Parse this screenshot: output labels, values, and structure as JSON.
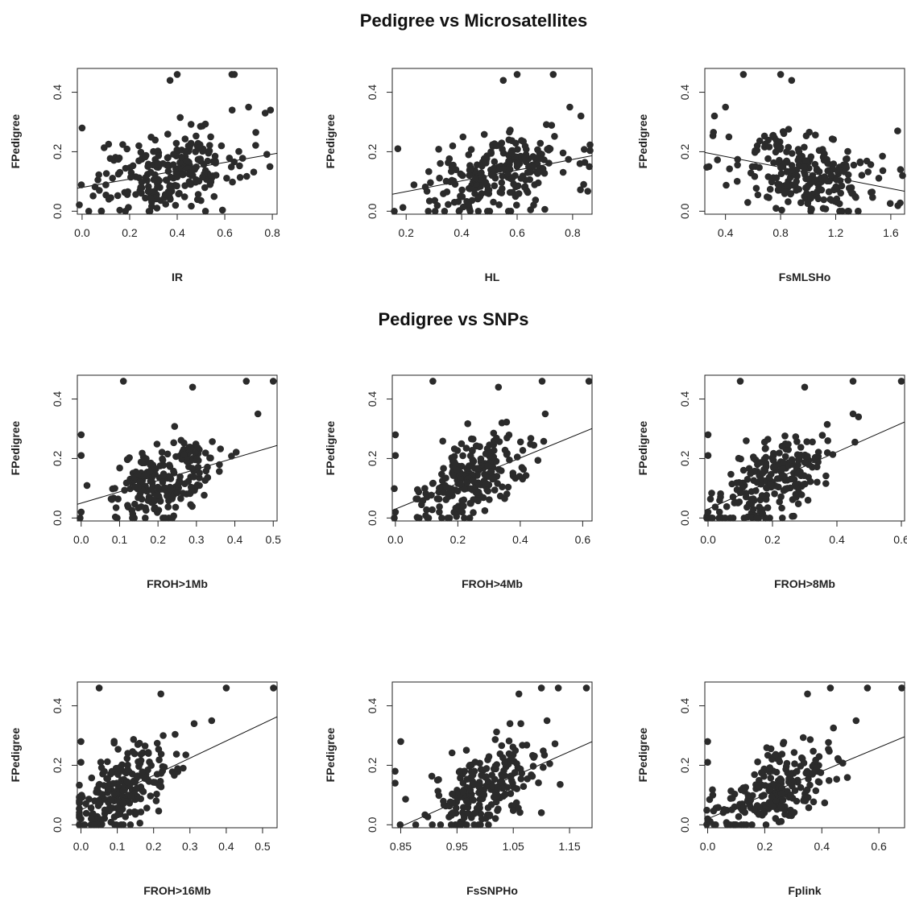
{
  "section_titles": {
    "microsatellites": "Pedigree vs Microsatellites",
    "snps": "Pedigree vs SNPs"
  },
  "colors": {
    "points": "#2b2b2b",
    "axis": "#222222",
    "line": "#111111"
  },
  "chart_data": [
    {
      "type": "scatter",
      "section": "microsatellites",
      "xlabel": "IR",
      "ylabel": "FPedigree",
      "xlim": [
        -0.02,
        0.82
      ],
      "ylim": [
        -0.01,
        0.48
      ],
      "xticks": [
        "0.0",
        "0.2",
        "0.4",
        "0.6",
        "0.8"
      ],
      "xtick_values": [
        0.0,
        0.2,
        0.4,
        0.6,
        0.8
      ],
      "yticks": [
        "0.0",
        "0.2",
        "0.4"
      ],
      "ytick_values": [
        0.0,
        0.2,
        0.4
      ],
      "regression": {
        "intercept": 0.08,
        "slope": 0.14
      },
      "highlight_points": [
        [
          0.37,
          0.44
        ],
        [
          0.4,
          0.46
        ],
        [
          0.63,
          0.46
        ],
        [
          0.64,
          0.46
        ],
        [
          0.0,
          0.28
        ],
        [
          0.7,
          0.35
        ],
        [
          0.77,
          0.33
        ],
        [
          0.79,
          0.15
        ]
      ],
      "n_points": 240,
      "x_mean": 0.36,
      "x_sd": 0.16
    },
    {
      "type": "scatter",
      "section": "microsatellites",
      "xlabel": "HL",
      "ylabel": "FPedigree",
      "xlim": [
        0.15,
        0.87
      ],
      "ylim": [
        -0.01,
        0.48
      ],
      "xticks": [
        "0.2",
        "0.4",
        "0.6",
        "0.8"
      ],
      "xtick_values": [
        0.2,
        0.4,
        0.6,
        0.8
      ],
      "yticks": [
        "0.0",
        "0.2",
        "0.4"
      ],
      "ytick_values": [
        0.0,
        0.2,
        0.4
      ],
      "regression": {
        "intercept": 0.03,
        "slope": 0.18
      },
      "highlight_points": [
        [
          0.55,
          0.44
        ],
        [
          0.6,
          0.46
        ],
        [
          0.73,
          0.46
        ],
        [
          0.79,
          0.35
        ],
        [
          0.83,
          0.32
        ],
        [
          0.86,
          0.15
        ],
        [
          0.17,
          0.21
        ]
      ],
      "n_points": 240,
      "x_mean": 0.53,
      "x_sd": 0.13
    },
    {
      "type": "scatter",
      "section": "microsatellites",
      "xlabel": "FsMLSHo",
      "ylabel": "FPedigree",
      "xlim": [
        0.25,
        1.7
      ],
      "ylim": [
        -0.01,
        0.48
      ],
      "xticks": [
        "0.4",
        "0.8",
        "1.2",
        "1.6"
      ],
      "xtick_values": [
        0.4,
        0.8,
        1.2,
        1.6
      ],
      "yticks": [
        "0.0",
        "0.2",
        "0.4"
      ],
      "ytick_values": [
        0.0,
        0.2,
        0.4
      ],
      "regression": {
        "intercept": 0.22,
        "slope": -0.09
      },
      "highlight_points": [
        [
          0.53,
          0.46
        ],
        [
          0.8,
          0.46
        ],
        [
          0.88,
          0.44
        ],
        [
          0.32,
          0.32
        ],
        [
          0.4,
          0.35
        ],
        [
          0.28,
          0.15
        ],
        [
          1.65,
          0.27
        ],
        [
          1.67,
          0.14
        ]
      ],
      "n_points": 240,
      "x_mean": 0.98,
      "x_sd": 0.27
    },
    {
      "type": "scatter",
      "section": "snps",
      "xlabel": "FROH>1Mb",
      "ylabel": "FPedigree",
      "xlim": [
        -0.01,
        0.51
      ],
      "ylim": [
        -0.01,
        0.48
      ],
      "xticks": [
        "0.0",
        "0.1",
        "0.2",
        "0.3",
        "0.4",
        "0.5"
      ],
      "xtick_values": [
        0.0,
        0.1,
        0.2,
        0.3,
        0.4,
        0.5
      ],
      "yticks": [
        "0.0",
        "0.2",
        "0.4"
      ],
      "ytick_values": [
        0.0,
        0.2,
        0.4
      ],
      "regression": {
        "intercept": 0.05,
        "slope": 0.38
      },
      "highlight_points": [
        [
          0.11,
          0.46
        ],
        [
          0.43,
          0.46
        ],
        [
          0.5,
          0.46
        ],
        [
          0.29,
          0.44
        ],
        [
          0.46,
          0.35
        ],
        [
          0.0,
          0.28
        ],
        [
          0.0,
          0.21
        ],
        [
          0.0,
          0.02
        ]
      ],
      "n_points": 220,
      "x_mean": 0.22,
      "x_sd": 0.07
    },
    {
      "type": "scatter",
      "section": "snps",
      "xlabel": "FROH>4Mb",
      "ylabel": "FPedigree",
      "xlim": [
        -0.01,
        0.63
      ],
      "ylim": [
        -0.01,
        0.48
      ],
      "xticks": [
        "0.0",
        "0.2",
        "0.4",
        "0.6"
      ],
      "xtick_values": [
        0.0,
        0.2,
        0.4,
        0.6
      ],
      "yticks": [
        "0.0",
        "0.2",
        "0.4"
      ],
      "ytick_values": [
        0.0,
        0.2,
        0.4
      ],
      "regression": {
        "intercept": 0.03,
        "slope": 0.43
      },
      "highlight_points": [
        [
          0.12,
          0.46
        ],
        [
          0.47,
          0.46
        ],
        [
          0.62,
          0.46
        ],
        [
          0.33,
          0.44
        ],
        [
          0.48,
          0.35
        ],
        [
          0.0,
          0.28
        ],
        [
          0.0,
          0.21
        ],
        [
          0.0,
          0.02
        ]
      ],
      "n_points": 220,
      "x_mean": 0.24,
      "x_sd": 0.09
    },
    {
      "type": "scatter",
      "section": "snps",
      "xlabel": "FROH>8Mb",
      "ylabel": "FPedigree",
      "xlim": [
        -0.01,
        0.61
      ],
      "ylim": [
        -0.01,
        0.48
      ],
      "xticks": [
        "0.0",
        "0.2",
        "0.4",
        "0.6"
      ],
      "xtick_values": [
        0.0,
        0.2,
        0.4,
        0.6
      ],
      "yticks": [
        "0.0",
        "0.2",
        "0.4"
      ],
      "ytick_values": [
        0.0,
        0.2,
        0.4
      ],
      "regression": {
        "intercept": 0.03,
        "slope": 0.48
      },
      "highlight_points": [
        [
          0.1,
          0.46
        ],
        [
          0.45,
          0.46
        ],
        [
          0.6,
          0.46
        ],
        [
          0.3,
          0.44
        ],
        [
          0.45,
          0.35
        ],
        [
          0.0,
          0.28
        ],
        [
          0.0,
          0.21
        ],
        [
          0.0,
          0.02
        ]
      ],
      "n_points": 220,
      "x_mean": 0.2,
      "x_sd": 0.09
    },
    {
      "type": "scatter",
      "section": "snps",
      "xlabel": "FROH>16Mb",
      "ylabel": "FPedigree",
      "xlim": [
        -0.01,
        0.54
      ],
      "ylim": [
        -0.01,
        0.48
      ],
      "xticks": [
        "0.0",
        "0.1",
        "0.2",
        "0.3",
        "0.4",
        "0.5"
      ],
      "xtick_values": [
        0.0,
        0.1,
        0.2,
        0.3,
        0.4,
        0.5
      ],
      "yticks": [
        "0.0",
        "0.2",
        "0.4"
      ],
      "ytick_values": [
        0.0,
        0.2,
        0.4
      ],
      "regression": {
        "intercept": 0.05,
        "slope": 0.58
      },
      "highlight_points": [
        [
          0.05,
          0.46
        ],
        [
          0.4,
          0.46
        ],
        [
          0.53,
          0.46
        ],
        [
          0.22,
          0.44
        ],
        [
          0.36,
          0.35
        ],
        [
          0.0,
          0.28
        ],
        [
          0.0,
          0.21
        ],
        [
          0.0,
          0.02
        ]
      ],
      "n_points": 220,
      "x_mean": 0.12,
      "x_sd": 0.07
    },
    {
      "type": "scatter",
      "section": "snps",
      "xlabel": "FsSNPHo",
      "ylabel": "FPedigree",
      "xlim": [
        0.835,
        1.19
      ],
      "ylim": [
        -0.01,
        0.48
      ],
      "xticks": [
        "0.85",
        "0.95",
        "1.05",
        "1.15"
      ],
      "xtick_values": [
        0.85,
        0.95,
        1.05,
        1.15
      ],
      "yticks": [
        "0.0",
        "0.2",
        "0.4"
      ],
      "ytick_values": [
        0.0,
        0.2,
        0.4
      ],
      "regression": {
        "intercept": -0.72,
        "slope": 0.84
      },
      "highlight_points": [
        [
          1.06,
          0.44
        ],
        [
          1.1,
          0.46
        ],
        [
          1.13,
          0.46
        ],
        [
          1.18,
          0.46
        ],
        [
          1.11,
          0.35
        ],
        [
          0.85,
          0.28
        ],
        [
          0.84,
          0.18
        ],
        [
          0.84,
          0.14
        ]
      ],
      "n_points": 220,
      "x_mean": 1.0,
      "x_sd": 0.05
    },
    {
      "type": "scatter",
      "section": "snps",
      "xlabel": "Fplink",
      "ylabel": "FPedigree",
      "xlim": [
        -0.01,
        0.69
      ],
      "ylim": [
        -0.01,
        0.48
      ],
      "xticks": [
        "0.0",
        "0.2",
        "0.4",
        "0.6"
      ],
      "xtick_values": [
        0.0,
        0.2,
        0.4,
        0.6
      ],
      "yticks": [
        "0.0",
        "0.2",
        "0.4"
      ],
      "ytick_values": [
        0.0,
        0.2,
        0.4
      ],
      "regression": {
        "intercept": 0.02,
        "slope": 0.4
      },
      "highlight_points": [
        [
          0.35,
          0.44
        ],
        [
          0.43,
          0.46
        ],
        [
          0.56,
          0.46
        ],
        [
          0.68,
          0.46
        ],
        [
          0.52,
          0.35
        ],
        [
          0.0,
          0.28
        ],
        [
          0.0,
          0.21
        ],
        [
          0.0,
          0.02
        ]
      ],
      "n_points": 220,
      "x_mean": 0.24,
      "x_sd": 0.1
    }
  ]
}
